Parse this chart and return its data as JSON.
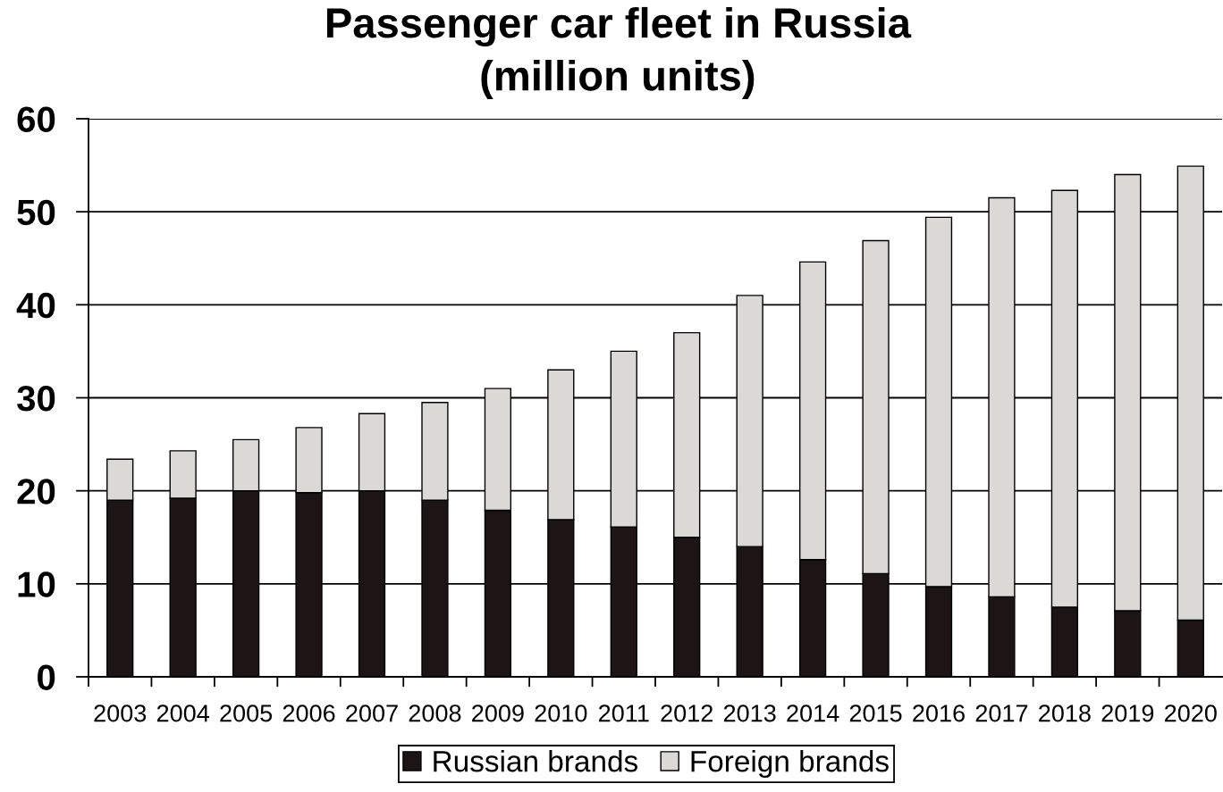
{
  "chart_data": {
    "type": "bar",
    "title": "Passenger car fleet in Russia",
    "subtitle": "(million units)",
    "categories": [
      "2003",
      "2004",
      "2005",
      "2006",
      "2007",
      "2008",
      "2009",
      "2010",
      "2011",
      "2012",
      "2013",
      "2014",
      "2015",
      "2016",
      "2017",
      "2018",
      "2019",
      "2020"
    ],
    "series": [
      {
        "name": "Russian brands",
        "color": "#1c1415",
        "values": [
          19.0,
          19.2,
          20.0,
          19.8,
          20.0,
          19.0,
          17.9,
          16.9,
          16.1,
          15.0,
          14.0,
          12.6,
          11.1,
          9.7,
          8.6,
          7.5,
          7.1,
          6.1
        ]
      },
      {
        "name": "Foreign brands",
        "color": "#dad9d5",
        "values": [
          4.4,
          5.1,
          5.5,
          7.0,
          8.3,
          10.5,
          13.1,
          16.1,
          18.9,
          22.0,
          27.0,
          32.0,
          35.8,
          39.7,
          42.9,
          44.8,
          46.9,
          48.8
        ]
      }
    ],
    "stacked": true,
    "ylim": [
      0,
      60
    ],
    "yticks": [
      0,
      10,
      20,
      30,
      40,
      50,
      60
    ],
    "grid": "y",
    "legend": "bottom"
  }
}
